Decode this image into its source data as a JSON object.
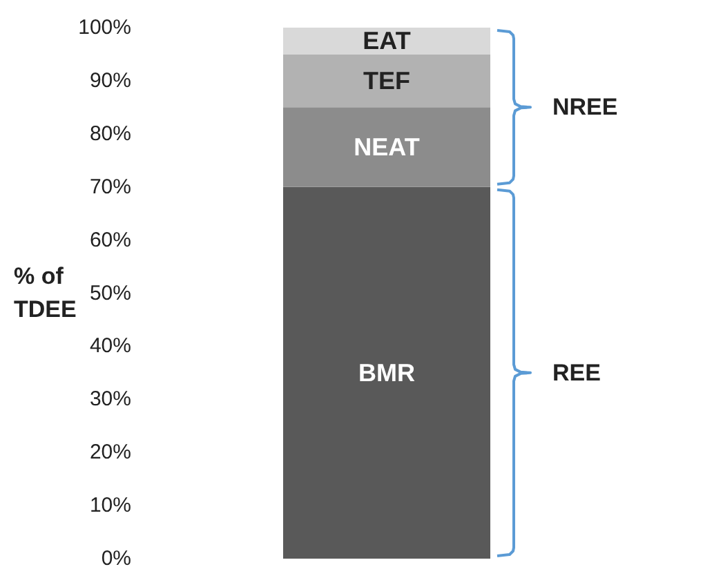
{
  "chart_data": {
    "type": "bar",
    "stacked": true,
    "ylabel": "% of\nTDEE",
    "categories": [
      null
    ],
    "series": [
      {
        "name": "BMR",
        "color": "#595959",
        "values": [
          70
        ]
      },
      {
        "name": "NEAT",
        "color": "#8c8c8c",
        "values": [
          15
        ]
      },
      {
        "name": "TEF",
        "color": "#b2b2b2",
        "values": [
          10
        ]
      },
      {
        "name": "EAT",
        "color": "#d9d9d9",
        "values": [
          5
        ]
      }
    ],
    "ylim": [
      0,
      100
    ],
    "yticks": [
      {
        "value": 0,
        "label": "0%"
      },
      {
        "value": 10,
        "label": "10%"
      },
      {
        "value": 20,
        "label": "20%"
      },
      {
        "value": 30,
        "label": "30%"
      },
      {
        "value": 40,
        "label": "40%"
      },
      {
        "value": 50,
        "label": "50%"
      },
      {
        "value": 60,
        "label": "60%"
      },
      {
        "value": 70,
        "label": "70%"
      },
      {
        "value": 80,
        "label": "80%"
      },
      {
        "value": 90,
        "label": "90%"
      },
      {
        "value": 100,
        "label": "100%"
      }
    ],
    "annotations": [
      "NREE",
      "REE"
    ],
    "grid": false,
    "legend": false
  }
}
